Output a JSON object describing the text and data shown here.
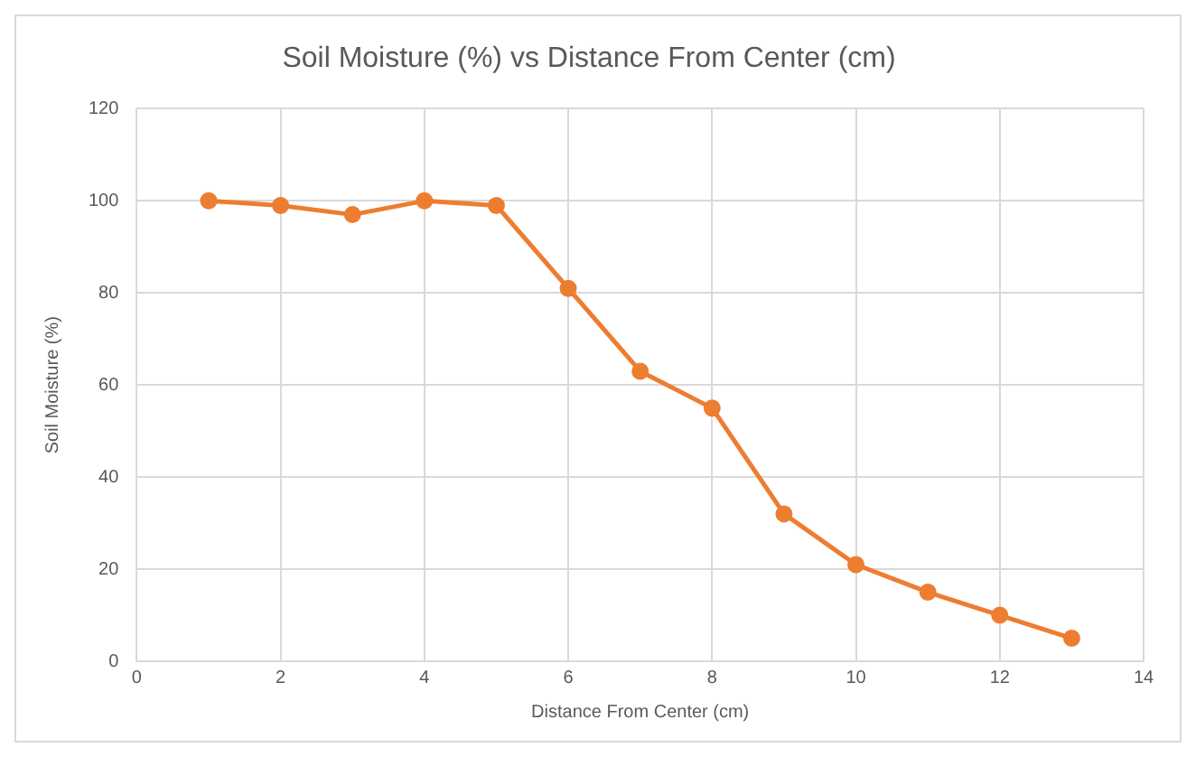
{
  "chart_data": {
    "type": "line",
    "title": "Soil Moisture (%) vs Distance From Center (cm)",
    "xlabel": "Distance From Center (cm)",
    "ylabel": "Soil Moisture (%)",
    "x": [
      1,
      2,
      3,
      4,
      5,
      6,
      7,
      8,
      9,
      10,
      11,
      12,
      13
    ],
    "series": [
      {
        "color": "#ed7d31",
        "values": [
          100,
          99,
          97,
          100,
          99,
          81,
          63,
          55,
          32,
          21,
          15,
          10,
          5
        ]
      }
    ],
    "xlim": [
      0,
      14
    ],
    "xticks": [
      0,
      2,
      4,
      6,
      8,
      10,
      12,
      14
    ],
    "ylim": [
      0,
      120
    ],
    "yticks": [
      0,
      20,
      40,
      60,
      80,
      100,
      120
    ],
    "grid": true,
    "legend": false,
    "marker": "circle",
    "line_style": "solid"
  }
}
